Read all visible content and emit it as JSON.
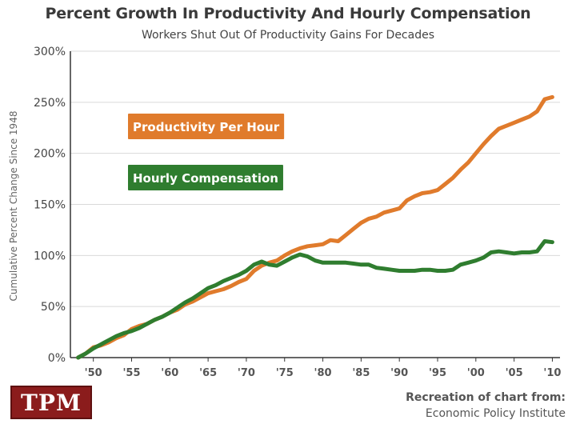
{
  "chart_data": {
    "type": "line",
    "title": "Percent Growth In Productivity And Hourly Compensation",
    "subtitle": "Workers Shut Out Of Productivity Gains For Decades",
    "ylabel": "Cumulative Percent Change Since 1948",
    "xlabel": "",
    "ylim": [
      0,
      300
    ],
    "xlim": [
      1947,
      2011
    ],
    "yticks": [
      0,
      50,
      100,
      150,
      200,
      250,
      300
    ],
    "ytick_labels": [
      "0%",
      "50%",
      "100%",
      "150%",
      "200%",
      "250%",
      "300%"
    ],
    "xticks": [
      1950,
      1955,
      1960,
      1965,
      1970,
      1975,
      1980,
      1985,
      1990,
      1995,
      2000,
      2005,
      2010
    ],
    "xtick_labels": [
      "'50",
      "'55",
      "'60",
      "'65",
      "'70",
      "'75",
      "'80",
      "'85",
      "'90",
      "'95",
      "'00",
      "'05",
      "'10"
    ],
    "grid": true,
    "series": [
      {
        "name": "Productivity Per Hour",
        "color": "#e07b2c",
        "x": [
          1948,
          1949,
          1950,
          1951,
          1952,
          1953,
          1954,
          1955,
          1956,
          1957,
          1958,
          1959,
          1960,
          1961,
          1962,
          1963,
          1964,
          1965,
          1966,
          1967,
          1968,
          1969,
          1970,
          1971,
          1972,
          1973,
          1974,
          1975,
          1976,
          1977,
          1978,
          1979,
          1980,
          1981,
          1982,
          1983,
          1984,
          1985,
          1986,
          1987,
          1988,
          1989,
          1990,
          1991,
          1992,
          1993,
          1994,
          1995,
          1996,
          1997,
          1998,
          1999,
          2000,
          2001,
          2002,
          2003,
          2004,
          2005,
          2006,
          2007,
          2008,
          2009,
          2010
        ],
        "values": [
          0,
          4,
          10,
          12,
          15,
          19,
          22,
          28,
          31,
          33,
          37,
          40,
          44,
          47,
          52,
          55,
          59,
          63,
          65,
          67,
          70,
          74,
          77,
          85,
          90,
          93,
          95,
          100,
          104,
          107,
          109,
          110,
          111,
          115,
          114,
          120,
          126,
          132,
          136,
          138,
          142,
          144,
          146,
          154,
          158,
          161,
          162,
          164,
          170,
          176,
          184,
          191,
          200,
          209,
          217,
          224,
          227,
          230,
          233,
          236,
          241,
          253,
          255
        ]
      },
      {
        "name": "Hourly Compensation",
        "color": "#2f7d2f",
        "x": [
          1948,
          1949,
          1950,
          1951,
          1952,
          1953,
          1954,
          1955,
          1956,
          1957,
          1958,
          1959,
          1960,
          1961,
          1962,
          1963,
          1964,
          1965,
          1966,
          1967,
          1968,
          1969,
          1970,
          1971,
          1972,
          1973,
          1974,
          1975,
          1976,
          1977,
          1978,
          1979,
          1980,
          1981,
          1982,
          1983,
          1984,
          1985,
          1986,
          1987,
          1988,
          1989,
          1990,
          1991,
          1992,
          1993,
          1994,
          1995,
          1996,
          1997,
          1998,
          1999,
          2000,
          2001,
          2002,
          2003,
          2004,
          2005,
          2006,
          2007,
          2008,
          2009,
          2010
        ],
        "values": [
          0,
          4,
          9,
          13,
          17,
          21,
          24,
          26,
          29,
          33,
          37,
          40,
          44,
          49,
          54,
          58,
          63,
          68,
          71,
          75,
          78,
          81,
          85,
          91,
          94,
          91,
          90,
          94,
          98,
          101,
          99,
          95,
          93,
          93,
          93,
          93,
          92,
          91,
          91,
          88,
          87,
          86,
          85,
          85,
          85,
          86,
          86,
          85,
          85,
          86,
          91,
          93,
          95,
          98,
          103,
          104,
          103,
          102,
          103,
          103,
          104,
          114,
          113
        ]
      }
    ],
    "legend": {
      "placement": "top-left, inside plot",
      "items": [
        {
          "label": "Productivity Per Hour",
          "color": "#e07b2c"
        },
        {
          "label": "Hourly Compensation",
          "color": "#2f7d2f"
        }
      ]
    }
  },
  "logo": {
    "text": "TPM",
    "color": "#8b1c1c"
  },
  "source": {
    "line1": "Recreation of chart from:",
    "line2": "Economic Policy Institute"
  }
}
